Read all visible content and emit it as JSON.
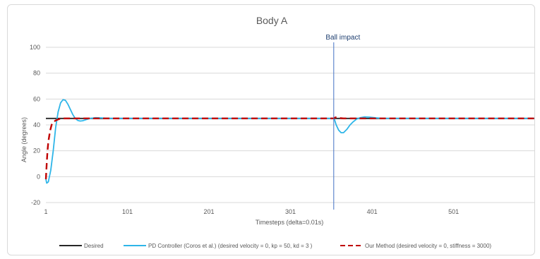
{
  "chart_data": {
    "type": "line",
    "title": "Body A",
    "xlabel": "Timesteps (delta=0.01s)",
    "ylabel": "Angle (degrees)",
    "xlim": [
      1,
      600
    ],
    "ylim": [
      -20,
      100
    ],
    "x_ticks": [
      "1",
      "101",
      "201",
      "301",
      "401",
      "501"
    ],
    "y_ticks": [
      "-20",
      "0",
      "20",
      "40",
      "60",
      "80",
      "100"
    ],
    "grid": true,
    "legend_position": "bottom",
    "annotation": {
      "label": "Ball impact",
      "x": 354
    },
    "series": [
      {
        "name": "Desired",
        "color": "#262626",
        "style": "solid",
        "points": [
          [
            1,
            45
          ],
          [
            600,
            45
          ]
        ]
      },
      {
        "name": "PD Controller (Coros et al.) (desired velocity = 0, kp = 50, kd = 3 )",
        "color": "#2eb5e8",
        "style": "solid",
        "points": [
          [
            1,
            -2
          ],
          [
            2,
            -5
          ],
          [
            4,
            -4
          ],
          [
            7,
            5
          ],
          [
            10,
            20
          ],
          [
            13,
            38
          ],
          [
            16,
            50
          ],
          [
            19,
            57
          ],
          [
            22,
            59.5
          ],
          [
            25,
            59
          ],
          [
            28,
            56
          ],
          [
            31,
            52
          ],
          [
            34,
            48
          ],
          [
            37,
            45
          ],
          [
            40,
            43.5
          ],
          [
            43,
            43
          ],
          [
            46,
            43.2
          ],
          [
            50,
            44
          ],
          [
            55,
            45
          ],
          [
            62,
            45.6
          ],
          [
            70,
            45.4
          ],
          [
            80,
            45
          ],
          [
            354,
            45
          ],
          [
            355,
            44
          ],
          [
            357,
            40
          ],
          [
            360,
            36
          ],
          [
            363,
            34
          ],
          [
            366,
            34
          ],
          [
            370,
            36.5
          ],
          [
            374,
            40
          ],
          [
            378,
            42.5
          ],
          [
            382,
            44.5
          ],
          [
            386,
            45.5
          ],
          [
            392,
            46.2
          ],
          [
            398,
            46
          ],
          [
            405,
            45.5
          ],
          [
            415,
            45
          ],
          [
            600,
            45
          ]
        ]
      },
      {
        "name": "Our Method (desired velocity = 0, stiffness = 3000)",
        "color": "#c00000",
        "style": "dashed",
        "points": [
          [
            1,
            -2
          ],
          [
            2,
            10
          ],
          [
            3,
            20
          ],
          [
            4,
            27
          ],
          [
            6,
            35
          ],
          [
            8,
            40
          ],
          [
            10,
            42
          ],
          [
            13,
            43.5
          ],
          [
            17,
            44.5
          ],
          [
            22,
            45
          ],
          [
            354,
            45
          ],
          [
            356,
            45.8
          ],
          [
            360,
            45.4
          ],
          [
            366,
            45
          ],
          [
            600,
            45
          ]
        ]
      }
    ]
  }
}
